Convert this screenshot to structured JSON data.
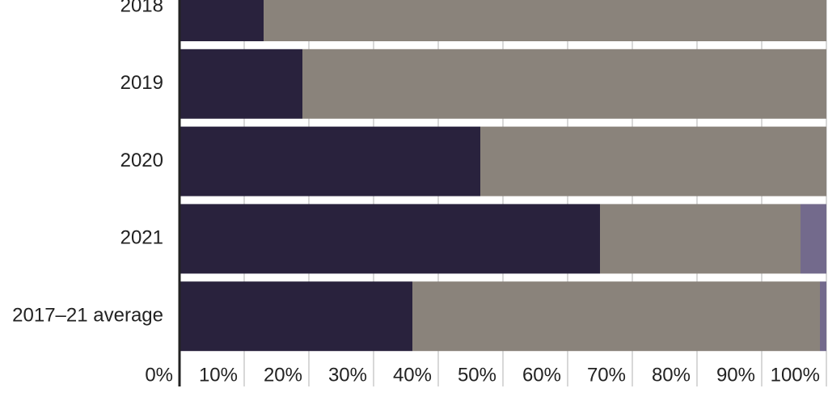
{
  "chart_data": {
    "type": "stacked-bar-horizontal",
    "categories": [
      "2018",
      "2019",
      "2020",
      "2021",
      "2017–21 average"
    ],
    "series": [
      {
        "color": "#29223d",
        "values": [
          13,
          19,
          46.5,
          65,
          36
        ]
      },
      {
        "color": "#8a837b",
        "values": [
          87,
          81,
          53.5,
          31,
          63
        ]
      },
      {
        "color": "#736a8c",
        "values": [
          0,
          0,
          0,
          4,
          1
        ]
      }
    ],
    "xlim": [
      0,
      100
    ],
    "xticks": [
      {
        "value": 0,
        "label": "0%"
      },
      {
        "value": 10,
        "label": "10%"
      },
      {
        "value": 20,
        "label": "20%"
      },
      {
        "value": 30,
        "label": "30%"
      },
      {
        "value": 40,
        "label": "40%"
      },
      {
        "value": 50,
        "label": "50%"
      },
      {
        "value": 60,
        "label": "60%"
      },
      {
        "value": 70,
        "label": "70%"
      },
      {
        "value": 80,
        "label": "80%"
      },
      {
        "value": 90,
        "label": "90%"
      },
      {
        "value": 100,
        "label": "100%"
      }
    ],
    "grid": true
  }
}
